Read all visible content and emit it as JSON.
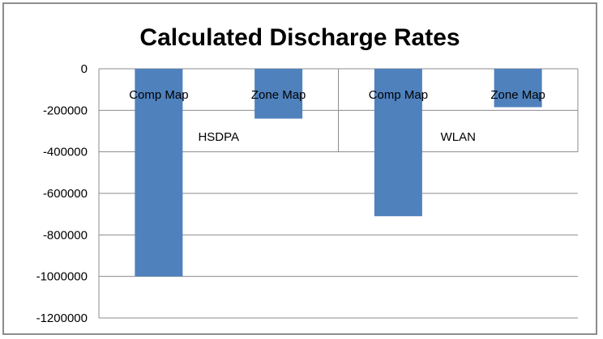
{
  "chart_data": {
    "type": "bar",
    "title": "Calculated Discharge Rates",
    "xlabel": "",
    "ylabel": "",
    "ylim": [
      -1200000,
      0
    ],
    "yticks": [
      "0",
      "-200000",
      "-400000",
      "-600000",
      "-800000",
      "-1000000",
      "-1200000"
    ],
    "ytick_values": [
      0,
      -200000,
      -400000,
      -600000,
      -800000,
      -1000000,
      -1200000
    ],
    "grid": true,
    "legend": "none",
    "bar_color": "#4f81bd",
    "groups": [
      {
        "name": "HSDPA",
        "bars": [
          {
            "label": "Comp Map",
            "value": -1000000
          },
          {
            "label": "Zone Map",
            "value": -240000
          }
        ]
      },
      {
        "name": "WLAN",
        "bars": [
          {
            "label": "Comp Map",
            "value": -710000
          },
          {
            "label": "Zone Map",
            "value": -185000
          }
        ]
      }
    ]
  }
}
